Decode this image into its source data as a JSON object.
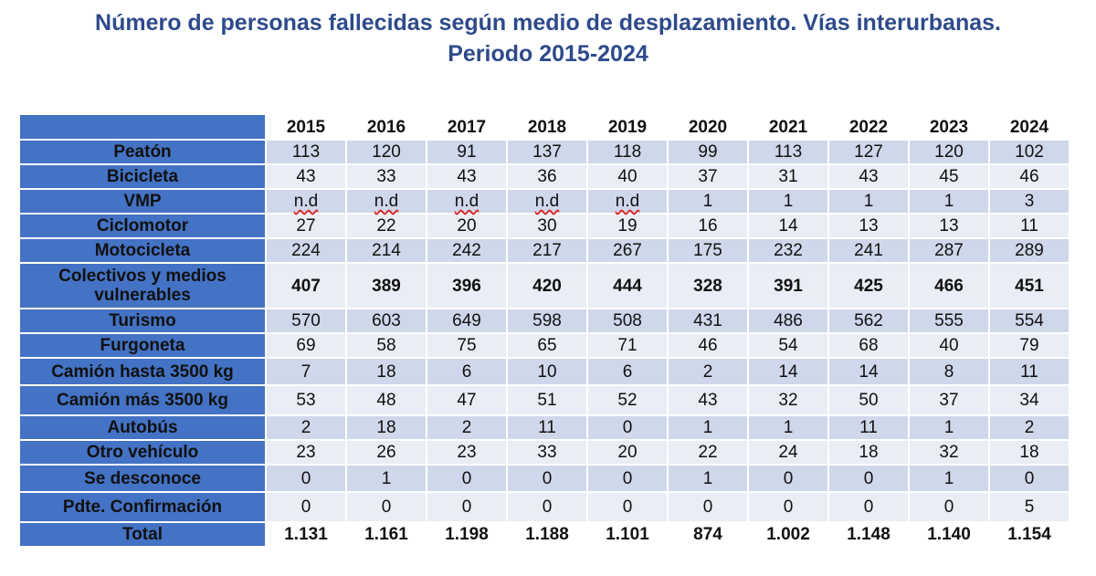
{
  "title": {
    "line1": "Número de personas fallecidas según medio de desplazamiento. Vías interurbanas.",
    "line2": "Periodo 2015-2024"
  },
  "chart_data": {
    "type": "table",
    "columns": [
      "2015",
      "2016",
      "2017",
      "2018",
      "2019",
      "2020",
      "2021",
      "2022",
      "2023",
      "2024"
    ],
    "rows": [
      {
        "label": "Peatón",
        "values": [
          "113",
          "120",
          "91",
          "137",
          "118",
          "99",
          "113",
          "127",
          "120",
          "102"
        ]
      },
      {
        "label": "Bicicleta",
        "values": [
          "43",
          "33",
          "43",
          "36",
          "40",
          "37",
          "31",
          "43",
          "45",
          "46"
        ]
      },
      {
        "label": "VMP",
        "values": [
          "n.d",
          "n.d",
          "n.d",
          "n.d",
          "n.d",
          "1",
          "1",
          "1",
          "1",
          "3"
        ]
      },
      {
        "label": "Ciclomotor",
        "values": [
          "27",
          "22",
          "20",
          "30",
          "19",
          "16",
          "14",
          "13",
          "13",
          "11"
        ]
      },
      {
        "label": "Motocicleta",
        "values": [
          "224",
          "214",
          "242",
          "217",
          "267",
          "175",
          "232",
          "241",
          "287",
          "289"
        ]
      },
      {
        "label": "Colectivos y medios vulnerables",
        "values": [
          "407",
          "389",
          "396",
          "420",
          "444",
          "328",
          "391",
          "425",
          "466",
          "451"
        ],
        "bold": true
      },
      {
        "label": "Turismo",
        "values": [
          "570",
          "603",
          "649",
          "598",
          "508",
          "431",
          "486",
          "562",
          "555",
          "554"
        ]
      },
      {
        "label": "Furgoneta",
        "values": [
          "69",
          "58",
          "75",
          "65",
          "71",
          "46",
          "54",
          "68",
          "40",
          "79"
        ]
      },
      {
        "label": "Camión hasta 3500 kg",
        "values": [
          "7",
          "18",
          "6",
          "10",
          "6",
          "2",
          "14",
          "14",
          "8",
          "11"
        ]
      },
      {
        "label": "Camión más 3500 kg",
        "values": [
          "53",
          "48",
          "47",
          "51",
          "52",
          "43",
          "32",
          "50",
          "37",
          "34"
        ]
      },
      {
        "label": "Autobús",
        "values": [
          "2",
          "18",
          "2",
          "11",
          "0",
          "1",
          "1",
          "11",
          "1",
          "2"
        ]
      },
      {
        "label": "Otro vehículo",
        "values": [
          "23",
          "26",
          "23",
          "33",
          "20",
          "22",
          "24",
          "18",
          "32",
          "18"
        ]
      },
      {
        "label": "Se desconoce",
        "values": [
          "0",
          "1",
          "0",
          "0",
          "0",
          "1",
          "0",
          "0",
          "1",
          "0"
        ]
      },
      {
        "label": "Pdte. Confirmación",
        "values": [
          "0",
          "0",
          "0",
          "0",
          "0",
          "0",
          "0",
          "0",
          "0",
          "5"
        ]
      },
      {
        "label": "Total",
        "values": [
          "1.131",
          "1.161",
          "1.198",
          "1.188",
          "1.101",
          "874",
          "1.002",
          "1.148",
          "1.140",
          "1.154"
        ],
        "bold": true,
        "total": true
      }
    ]
  }
}
